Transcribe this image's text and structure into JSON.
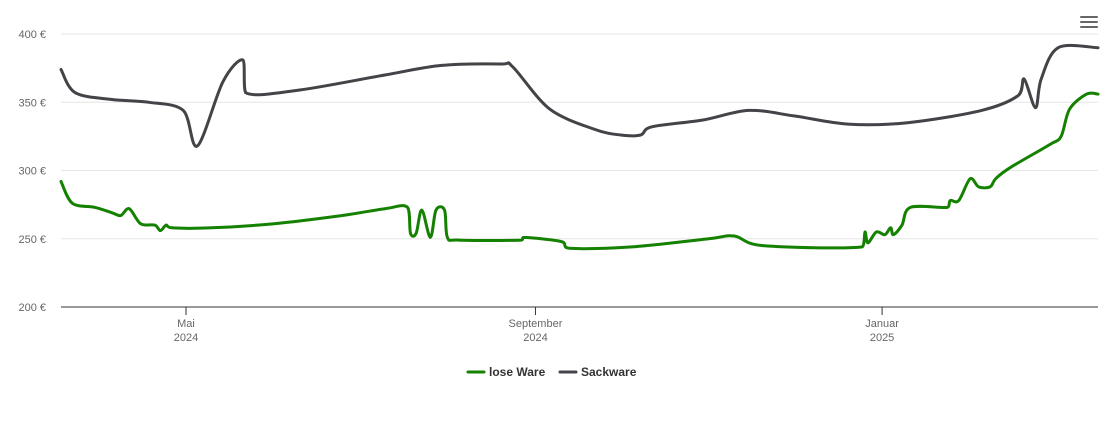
{
  "menu_icon": "hamburger-menu-icon",
  "chart_data": {
    "type": "line",
    "x_type": "date",
    "xlim": [
      "2024-03-18",
      "2025-03-18"
    ],
    "ylim": [
      200,
      400
    ],
    "y_ticks": [
      {
        "value": 200,
        "label": "200 €"
      },
      {
        "value": 250,
        "label": "250 €"
      },
      {
        "value": 300,
        "label": "300 €"
      },
      {
        "value": 350,
        "label": "350 €"
      },
      {
        "value": 400,
        "label": "400 €"
      }
    ],
    "x_ticks": [
      {
        "date": "2024-05-01",
        "month": "Mai",
        "year": "2024"
      },
      {
        "date": "2024-09-01",
        "month": "September",
        "year": "2024"
      },
      {
        "date": "2025-01-01",
        "month": "Januar",
        "year": "2025"
      }
    ],
    "grid": true,
    "legend_position": "bottom-center",
    "series": [
      {
        "name": "lose Ware",
        "color": "#158100",
        "points": [
          [
            "2024-03-18",
            292
          ],
          [
            "2024-03-22",
            276
          ],
          [
            "2024-03-30",
            273
          ],
          [
            "2024-04-05",
            269
          ],
          [
            "2024-04-08",
            267
          ],
          [
            "2024-04-11",
            272
          ],
          [
            "2024-04-15",
            261
          ],
          [
            "2024-04-20",
            260
          ],
          [
            "2024-04-22",
            256
          ],
          [
            "2024-04-24",
            260
          ],
          [
            "2024-04-26",
            258
          ],
          [
            "2024-05-10",
            258
          ],
          [
            "2024-06-01",
            261
          ],
          [
            "2024-06-25",
            267
          ],
          [
            "2024-07-10",
            272
          ],
          [
            "2024-07-18",
            273
          ],
          [
            "2024-07-19",
            254
          ],
          [
            "2024-07-21",
            254
          ],
          [
            "2024-07-23",
            271
          ],
          [
            "2024-07-26",
            251
          ],
          [
            "2024-07-28",
            271
          ],
          [
            "2024-07-31",
            271
          ],
          [
            "2024-08-01",
            251
          ],
          [
            "2024-08-05",
            249
          ],
          [
            "2024-08-27",
            249
          ],
          [
            "2024-08-28",
            251
          ],
          [
            "2024-09-10",
            248
          ],
          [
            "2024-09-13",
            243
          ],
          [
            "2024-10-05",
            244
          ],
          [
            "2024-11-01",
            250
          ],
          [
            "2024-11-10",
            252
          ],
          [
            "2024-11-20",
            245
          ],
          [
            "2024-12-25",
            244
          ],
          [
            "2024-12-26",
            255
          ],
          [
            "2024-12-27",
            247
          ],
          [
            "2024-12-30",
            255
          ],
          [
            "2025-01-02",
            253
          ],
          [
            "2025-01-04",
            258
          ],
          [
            "2025-01-05",
            253
          ],
          [
            "2025-01-08",
            260
          ],
          [
            "2025-01-11",
            273
          ],
          [
            "2025-01-24",
            273
          ],
          [
            "2025-01-25",
            278
          ],
          [
            "2025-01-28",
            278
          ],
          [
            "2025-02-01",
            294
          ],
          [
            "2025-02-04",
            288
          ],
          [
            "2025-02-08",
            288
          ],
          [
            "2025-02-10",
            294
          ],
          [
            "2025-02-15",
            302
          ],
          [
            "2025-03-01",
            319
          ],
          [
            "2025-03-05",
            325
          ],
          [
            "2025-03-08",
            345
          ],
          [
            "2025-03-14",
            356
          ],
          [
            "2025-03-18",
            356
          ]
        ]
      },
      {
        "name": "Sackware",
        "color": "#434348",
        "points": [
          [
            "2024-03-18",
            374
          ],
          [
            "2024-03-23",
            357
          ],
          [
            "2024-04-05",
            352
          ],
          [
            "2024-04-18",
            350
          ],
          [
            "2024-04-30",
            344
          ],
          [
            "2024-05-05",
            318
          ],
          [
            "2024-05-14",
            365
          ],
          [
            "2024-05-21",
            381
          ],
          [
            "2024-05-22",
            357
          ],
          [
            "2024-06-10",
            359
          ],
          [
            "2024-07-10",
            370
          ],
          [
            "2024-07-30",
            377
          ],
          [
            "2024-08-20",
            378
          ],
          [
            "2024-08-24",
            376
          ],
          [
            "2024-09-06",
            345
          ],
          [
            "2024-09-22",
            330
          ],
          [
            "2024-10-01",
            326
          ],
          [
            "2024-10-08",
            326
          ],
          [
            "2024-10-12",
            332
          ],
          [
            "2024-10-30",
            337
          ],
          [
            "2024-11-15",
            344
          ],
          [
            "2024-12-01",
            340
          ],
          [
            "2024-12-20",
            334
          ],
          [
            "2025-01-10",
            335
          ],
          [
            "2025-02-05",
            344
          ],
          [
            "2025-02-18",
            355
          ],
          [
            "2025-02-20",
            367
          ],
          [
            "2025-02-24",
            346
          ],
          [
            "2025-02-26",
            367
          ],
          [
            "2025-03-04",
            390
          ],
          [
            "2025-03-18",
            390
          ]
        ]
      }
    ]
  }
}
